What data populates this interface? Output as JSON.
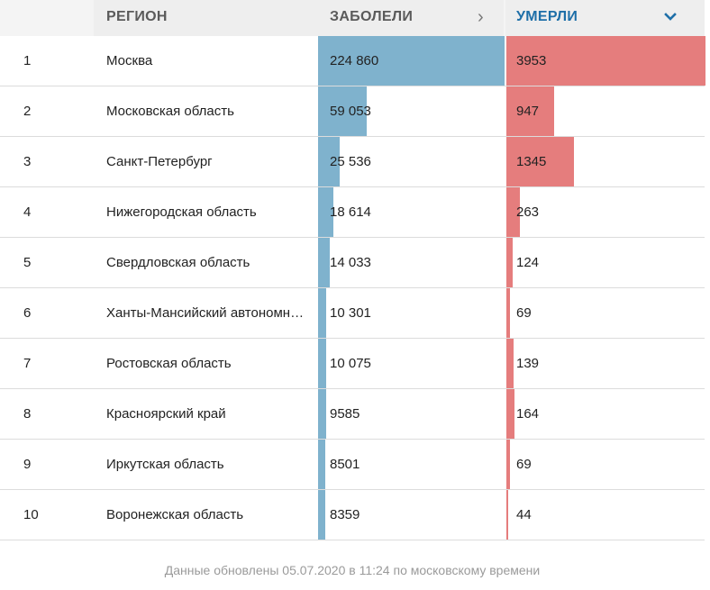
{
  "header": {
    "region_label": "РЕГИОН",
    "cases_label": "ЗАБОЛЕЛИ",
    "deaths_label": "УМЕРЛИ",
    "cases_sort_icon": "chevron-right-icon",
    "deaths_sort_icon": "chevron-down-icon",
    "active_sort_color": "#1e6fa8"
  },
  "colors": {
    "cases_bar": "#7fb2cd",
    "deaths_bar": "#e57d7d"
  },
  "rows": [
    {
      "index": "1",
      "region": "Москва",
      "cases_text": "224 860",
      "cases": 224860,
      "deaths_text": "3953",
      "deaths": 3953
    },
    {
      "index": "2",
      "region": "Московская область",
      "cases_text": "59 053",
      "cases": 59053,
      "deaths_text": "947",
      "deaths": 947
    },
    {
      "index": "3",
      "region": "Санкт-Петербург",
      "cases_text": "25 536",
      "cases": 25536,
      "deaths_text": "1345",
      "deaths": 1345
    },
    {
      "index": "4",
      "region": "Нижегородская область",
      "cases_text": "18 614",
      "cases": 18614,
      "deaths_text": "263",
      "deaths": 263
    },
    {
      "index": "5",
      "region": "Свердловская область",
      "cases_text": "14 033",
      "cases": 14033,
      "deaths_text": "124",
      "deaths": 124
    },
    {
      "index": "6",
      "region": "Ханты-Мансийский автономный округ — Югра",
      "cases_text": "10 301",
      "cases": 10301,
      "deaths_text": "69",
      "deaths": 69
    },
    {
      "index": "7",
      "region": "Ростовская область",
      "cases_text": "10 075",
      "cases": 10075,
      "deaths_text": "139",
      "deaths": 139
    },
    {
      "index": "8",
      "region": "Красноярский край",
      "cases_text": "9585",
      "cases": 9585,
      "deaths_text": "164",
      "deaths": 164
    },
    {
      "index": "9",
      "region": "Иркутская область",
      "cases_text": "8501",
      "cases": 8501,
      "deaths_text": "69",
      "deaths": 69
    },
    {
      "index": "10",
      "region": "Воронежская область",
      "cases_text": "8359",
      "cases": 8359,
      "deaths_text": "44",
      "deaths": 44
    }
  ],
  "footer": {
    "text": "Данные обновлены 05.07.2020 в 11:24 по московскому времени"
  }
}
